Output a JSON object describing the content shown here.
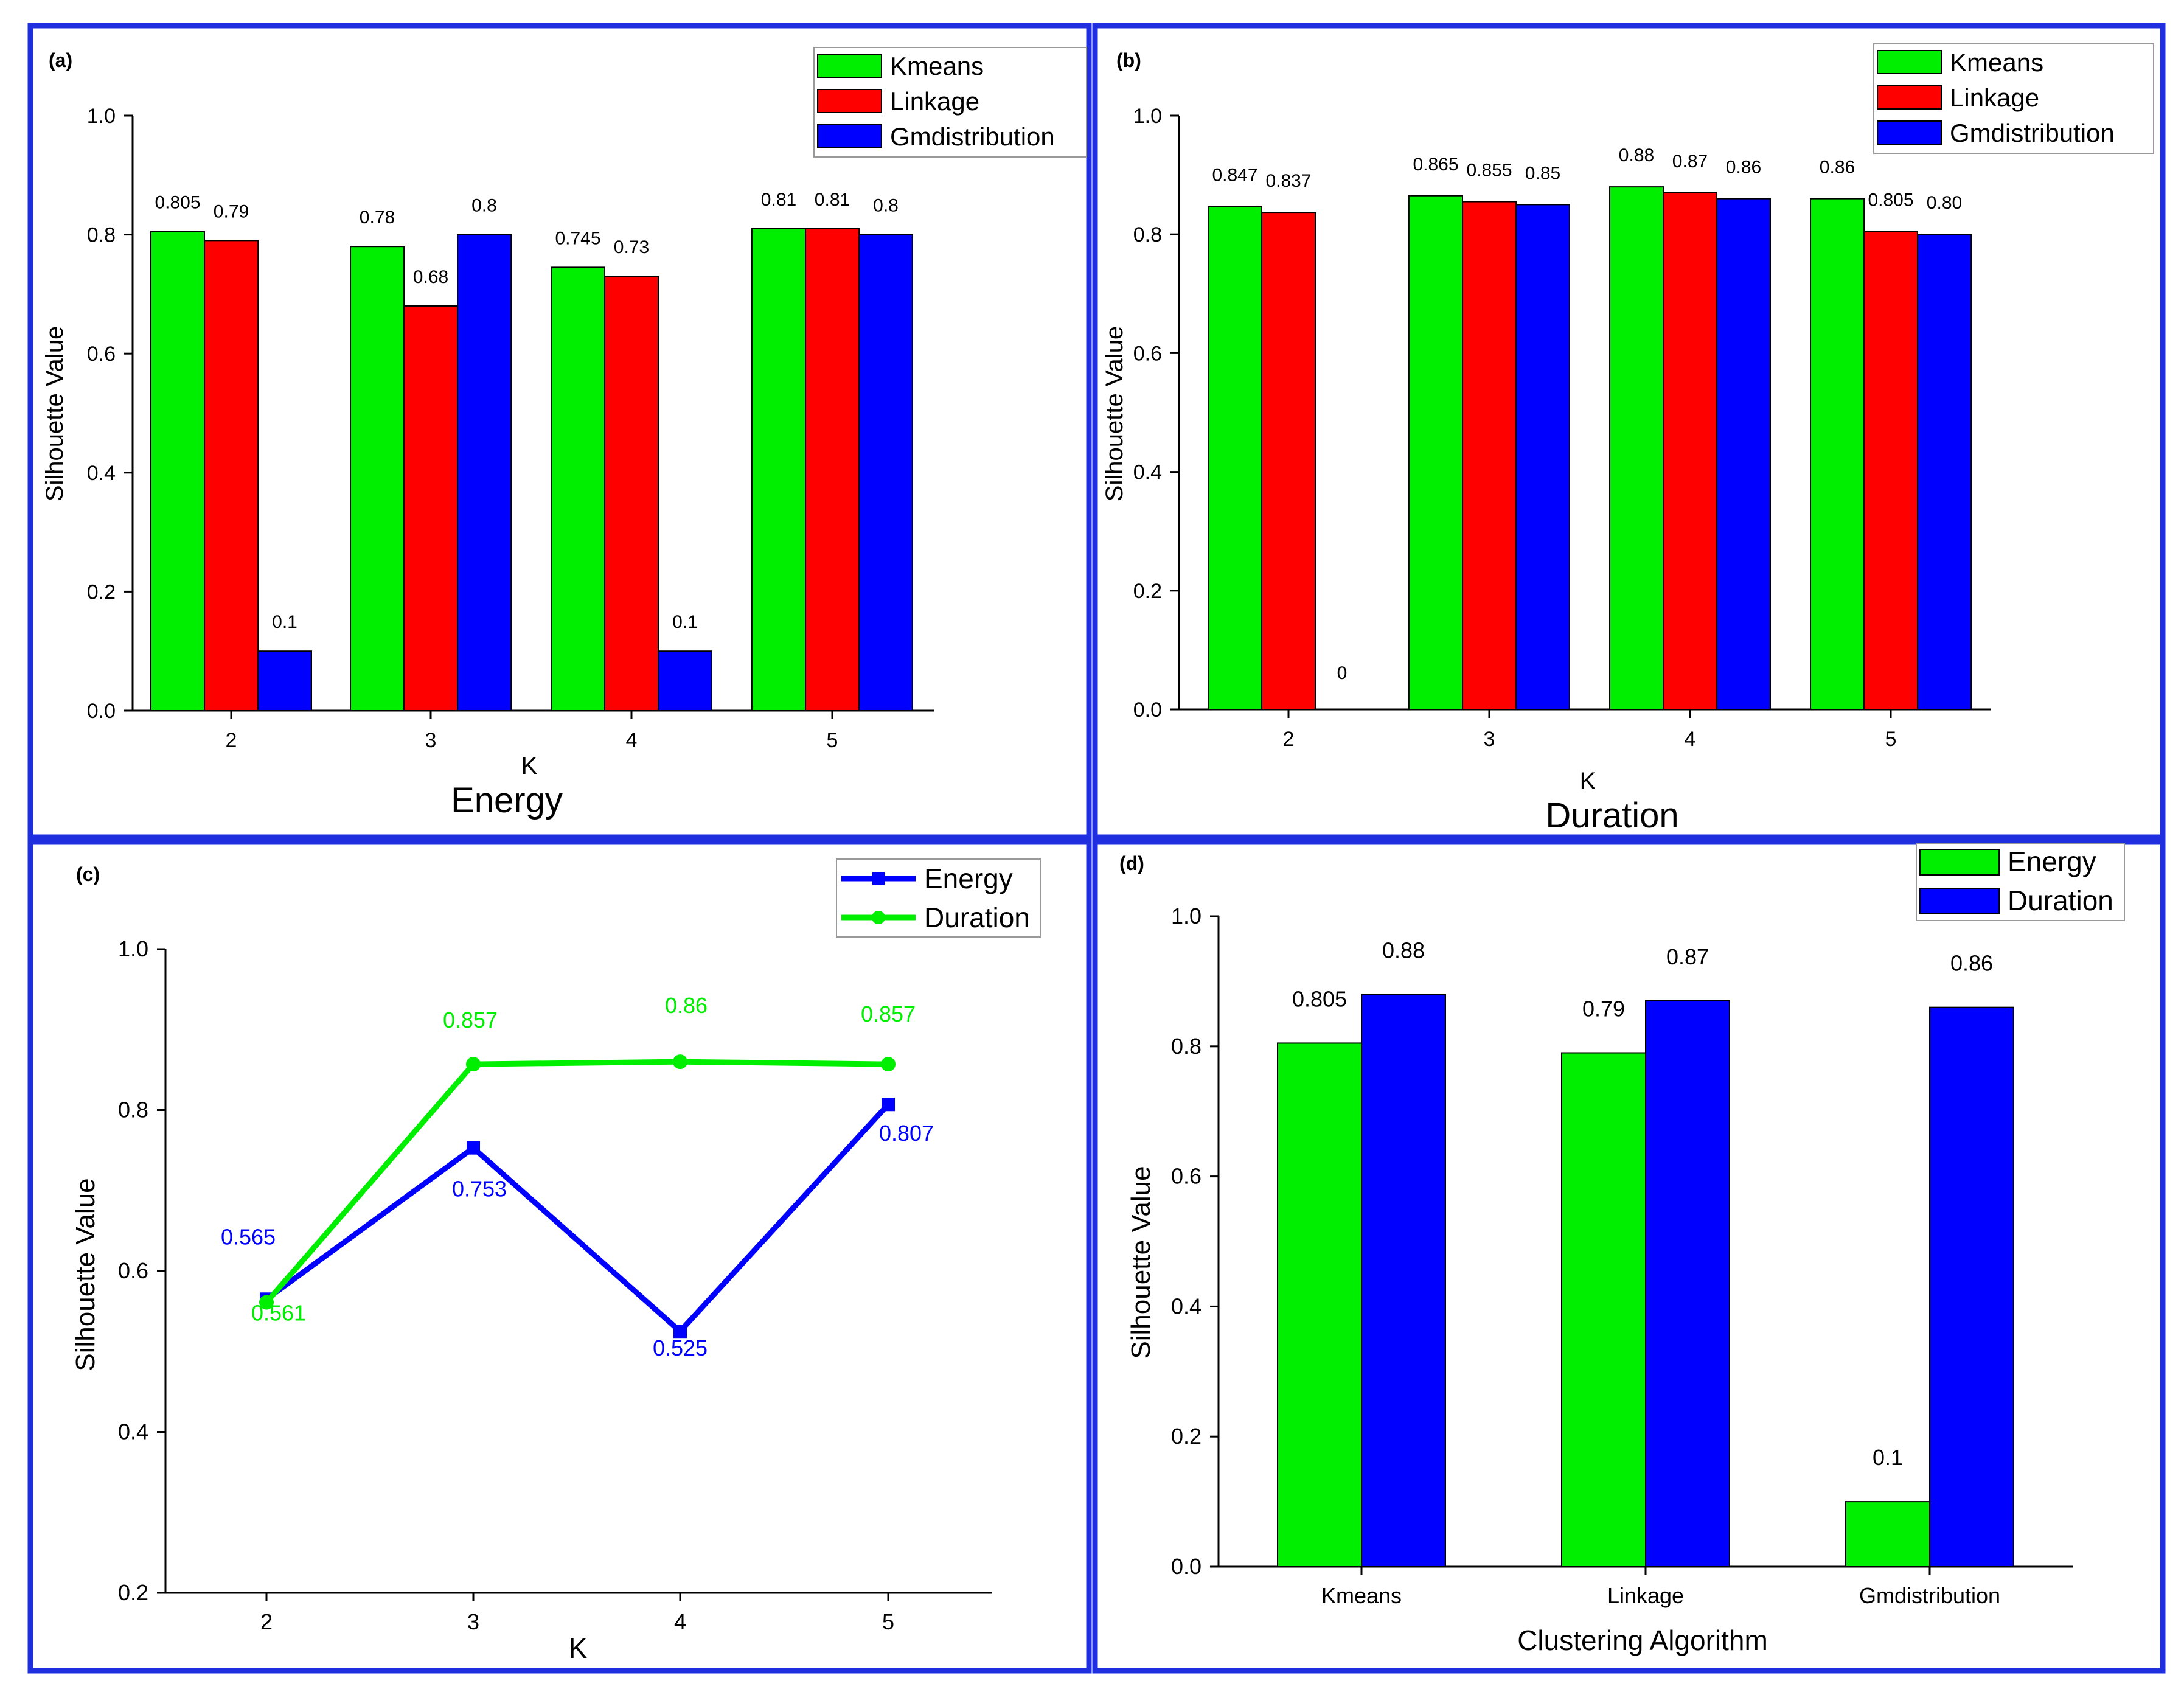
{
  "colors": {
    "frame": "#1f2fe0",
    "green": "#00ee00",
    "red": "#ff0000",
    "blue": "#0000ff",
    "axis": "#000000"
  },
  "chart_data": [
    {
      "id": "a",
      "type": "bar",
      "panel_label": "(a)",
      "title": "Energy",
      "xlabel": "K",
      "ylabel": "Silhouette Value",
      "categories": [
        "2",
        "3",
        "4",
        "5"
      ],
      "ylim": [
        0,
        1
      ],
      "yticks": [
        "0.0",
        "0.2",
        "0.4",
        "0.6",
        "0.8",
        "1.0"
      ],
      "legend_position": "top-right",
      "series": [
        {
          "name": "Kmeans",
          "color": "#00ee00",
          "values": [
            0.805,
            0.78,
            0.745,
            0.81
          ],
          "labels": [
            "0.805",
            "0.78",
            "0.745",
            "0.81"
          ]
        },
        {
          "name": "Linkage",
          "color": "#ff0000",
          "values": [
            0.79,
            0.68,
            0.73,
            0.81
          ],
          "labels": [
            "0.79",
            "0.68",
            "0.73",
            "0.81"
          ]
        },
        {
          "name": "Gmdistribution",
          "color": "#0000ff",
          "values": [
            0.1,
            0.8,
            0.1,
            0.8
          ],
          "labels": [
            "0.1",
            "0.8",
            "0.1",
            "0.8"
          ]
        }
      ]
    },
    {
      "id": "b",
      "type": "bar",
      "panel_label": "(b)",
      "title": "Duration",
      "xlabel": "K",
      "ylabel": "Silhouette Value",
      "categories": [
        "2",
        "3",
        "4",
        "5"
      ],
      "ylim": [
        0,
        1
      ],
      "yticks": [
        "0.0",
        "0.2",
        "0.4",
        "0.6",
        "0.8",
        "1.0"
      ],
      "legend_position": "top-right",
      "series": [
        {
          "name": "Kmeans",
          "color": "#00ee00",
          "values": [
            0.847,
            0.865,
            0.88,
            0.86
          ],
          "labels": [
            "0.847",
            "0.865",
            "0.88",
            "0.86"
          ]
        },
        {
          "name": "Linkage",
          "color": "#ff0000",
          "values": [
            0.837,
            0.855,
            0.87,
            0.805
          ],
          "labels": [
            "0.837",
            "0.855",
            "0.87",
            "0.805"
          ]
        },
        {
          "name": "Gmdistribution",
          "color": "#0000ff",
          "values": [
            0,
            0.85,
            0.86,
            0.8
          ],
          "labels": [
            "0",
            "0.85",
            "0.86",
            "0.80"
          ]
        }
      ]
    },
    {
      "id": "c",
      "type": "line",
      "panel_label": "(c)",
      "title": "",
      "xlabel": "K",
      "ylabel": "Silhouette Value",
      "x": [
        "2",
        "3",
        "4",
        "5"
      ],
      "ylim": [
        0.2,
        1
      ],
      "yticks": [
        "0.2",
        "0.4",
        "0.6",
        "0.8",
        "1.0"
      ],
      "legend_position": "top-right",
      "series": [
        {
          "name": "Energy",
          "color": "#0000ff",
          "marker": "square",
          "values": [
            0.565,
            0.753,
            0.525,
            0.807
          ],
          "labels": [
            "0.565",
            "0.753",
            "0.525",
            "0.807"
          ]
        },
        {
          "name": "Duration",
          "color": "#00ee00",
          "marker": "circle",
          "values": [
            0.561,
            0.857,
            0.86,
            0.857
          ],
          "labels": [
            "0.561",
            "0.857",
            "0.86",
            "0.857"
          ]
        }
      ]
    },
    {
      "id": "d",
      "type": "bar",
      "panel_label": "(d)",
      "title": "",
      "xlabel": "Clustering Algorithm",
      "ylabel": "Silhouette Value",
      "categories": [
        "Kmeans",
        "Linkage",
        "Gmdistribution"
      ],
      "ylim": [
        0,
        1
      ],
      "yticks": [
        "0.0",
        "0.2",
        "0.4",
        "0.6",
        "0.8",
        "1.0"
      ],
      "legend_position": "top-right",
      "series": [
        {
          "name": "Energy",
          "color": "#00ee00",
          "values": [
            0.805,
            0.79,
            0.1
          ],
          "labels": [
            "0.805",
            "0.79",
            "0.1"
          ]
        },
        {
          "name": "Duration",
          "color": "#0000ff",
          "values": [
            0.88,
            0.87,
            0.86
          ],
          "labels": [
            "0.88",
            "0.87",
            "0.86"
          ]
        }
      ]
    }
  ]
}
